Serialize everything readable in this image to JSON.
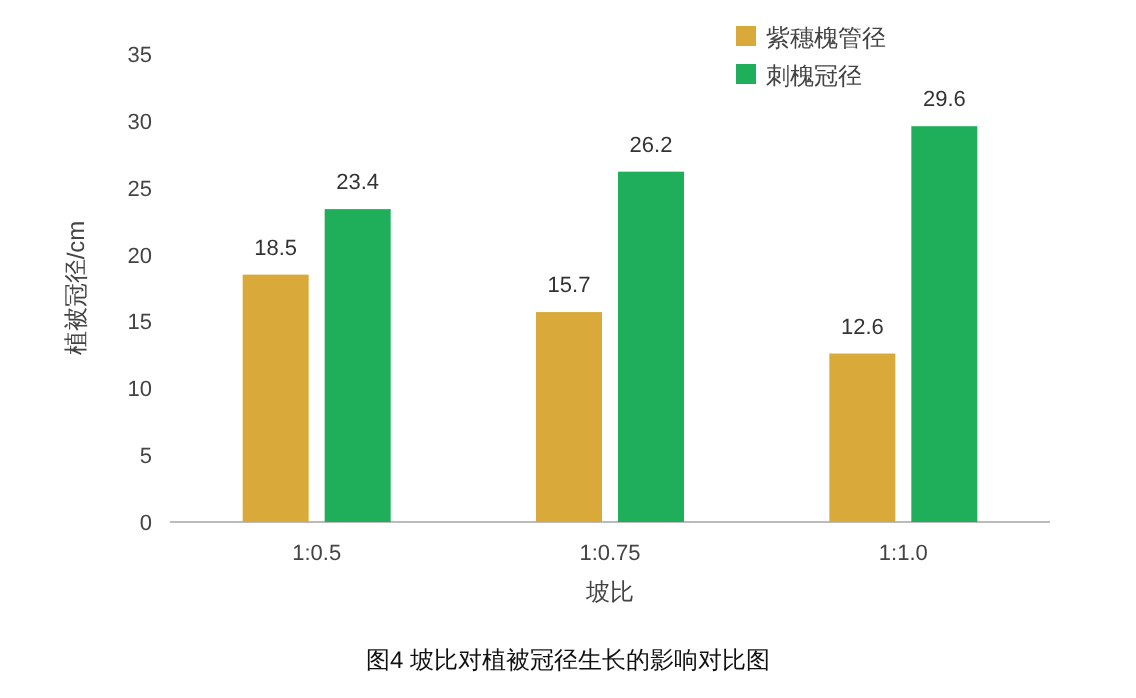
{
  "chart_data": {
    "type": "bar",
    "categories": [
      "1:0.5",
      "1:0.75",
      "1:1.0"
    ],
    "series": [
      {
        "name": "紫穗槐管径",
        "color": "#d9aa3a",
        "values": [
          18.5,
          15.7,
          12.6
        ]
      },
      {
        "name": "刺槐冠径",
        "color": "#1fae5a",
        "values": [
          23.4,
          26.2,
          29.6
        ]
      }
    ],
    "ylim": [
      0,
      35
    ],
    "yticks": [
      0,
      5,
      10,
      15,
      20,
      25,
      30,
      35
    ],
    "xlabel": "坡比",
    "ylabel": "植被冠径/cm",
    "legend": "top right",
    "data_labels": true,
    "annotations": [
      "图4 坡比对植被冠径生长的影响对比图"
    ]
  }
}
